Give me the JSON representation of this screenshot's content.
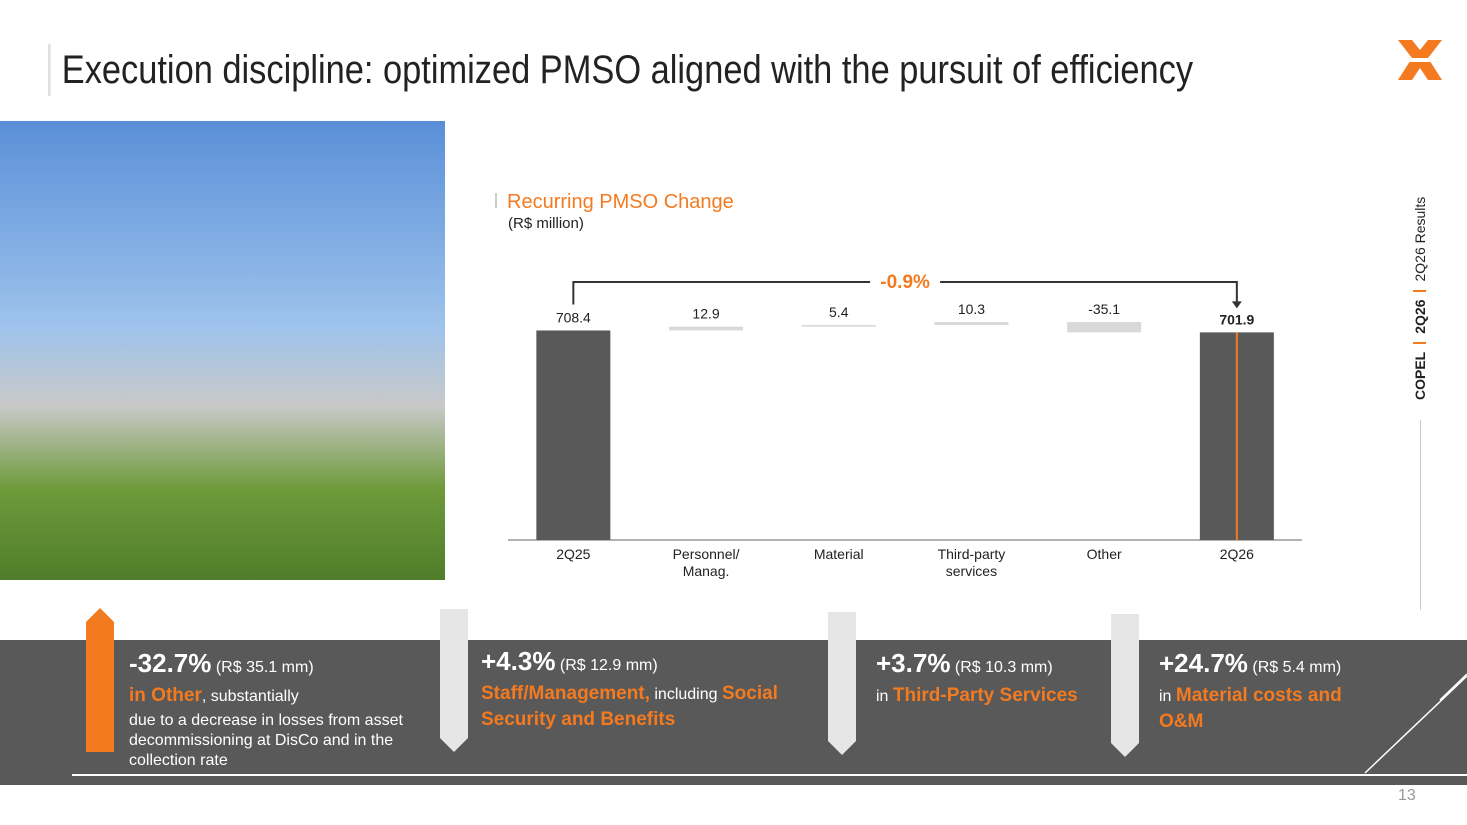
{
  "header": {
    "title": "Execution discipline: optimized PMSO aligned with the pursuit of efficiency"
  },
  "sidebar": {
    "brand": "COPEL",
    "period": "2Q26",
    "report": "2Q26 Results"
  },
  "chart_data": {
    "type": "waterfall",
    "title": "Recurring PMSO Change",
    "subtitle": "(R$ million)",
    "categories": [
      "2Q25",
      "Personnel/\nManag.",
      "Material",
      "Third-party\nservices",
      "Other",
      "2Q26"
    ],
    "values": [
      708.4,
      12.9,
      5.4,
      10.3,
      -35.1,
      701.9
    ],
    "is_total": [
      true,
      false,
      false,
      false,
      false,
      true
    ],
    "color": "#595959",
    "change_color": "#d9d9d9",
    "annotation": "-0.9%"
  },
  "callouts": [
    {
      "change": "-32.7%",
      "amount": "(R$ 35.1 mm)",
      "parts": [
        {
          "text": "in Other",
          "highlight": true
        },
        {
          "text": ", substantially",
          "highlight": false
        }
      ],
      "detail": "due to a decrease in losses from asset decommissioning at DisCo and in the collection rate"
    },
    {
      "change": "+4.3%",
      "amount": "(R$ 12.9 mm)",
      "parts": [
        {
          "text": "Staff/Management,",
          "highlight": true
        },
        {
          "text": " including ",
          "highlight": false
        },
        {
          "text": "Social Security and Benefits",
          "highlight": true
        }
      ]
    },
    {
      "change": "+3.7%",
      "amount": "(R$ 10.3 mm)",
      "parts": [
        {
          "text": "in ",
          "highlight": false
        },
        {
          "text": "Third-Party Services",
          "highlight": true
        }
      ]
    },
    {
      "change": "+24.7%",
      "amount": "(R$ 5.4 mm)",
      "parts": [
        {
          "text": "in ",
          "highlight": false
        },
        {
          "text": "Material costs and O&M",
          "highlight": true
        }
      ]
    }
  ],
  "page_number": "13"
}
